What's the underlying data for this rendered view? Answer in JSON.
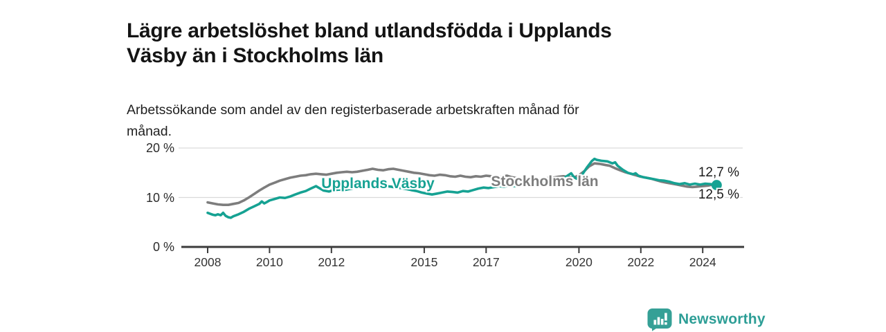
{
  "header": {
    "title_lines": [
      "Lägre arbetslöshet bland utlandsfödda i Upplands",
      "Väsby än i Stockholms län"
    ],
    "subtitle_lines": [
      "Arbetssökande som andel av den registerbaserade arbetskraften månad för",
      "månad."
    ]
  },
  "branding": {
    "logo_text": "Newsworthy",
    "logo_icon": "speech-bubble-bar-chart",
    "brand_color": "#2d9e96"
  },
  "colors": {
    "teal_series": "#16a293",
    "gray_series": "#7d7d7d",
    "axis": "#3b3b3b",
    "grid": "#d9d9d9",
    "text_dark": "#1a1a1a"
  },
  "chart_data": {
    "type": "line",
    "title": "Lägre arbetslöshet bland utlandsfödda i Upplands Väsby än i Stockholms län",
    "subtitle": "Arbetssökande som andel av den registerbaserade arbetskraften månad för månad.",
    "xlabel": "",
    "ylabel": "",
    "x_range": [
      2007.9,
      2025.35
    ],
    "y_range": [
      0,
      20
    ],
    "grid": "horizontal",
    "legend_position": "inline-labels",
    "x_ticks": [
      {
        "year": 2008,
        "label": "2008"
      },
      {
        "year": 2010,
        "label": "2010"
      },
      {
        "year": 2012,
        "label": "2012"
      },
      {
        "year": 2015,
        "label": "2015"
      },
      {
        "year": 2017,
        "label": "2017"
      },
      {
        "year": 2020,
        "label": "2020"
      },
      {
        "year": 2022,
        "label": "2022"
      },
      {
        "year": 2024,
        "label": "2024"
      }
    ],
    "y_ticks": [
      {
        "value": 0,
        "label": "0 %"
      },
      {
        "value": 10,
        "label": "10 %"
      },
      {
        "value": 20,
        "label": "20 %"
      }
    ],
    "series": [
      {
        "name": "Stockholms län",
        "color": "#7d7d7d",
        "end_label": "12,7 %",
        "end_value": 12.7,
        "end_dot": false,
        "points": [
          [
            2008.0,
            9.0
          ],
          [
            2008.17,
            8.8
          ],
          [
            2008.33,
            8.6
          ],
          [
            2008.5,
            8.5
          ],
          [
            2008.67,
            8.5
          ],
          [
            2008.83,
            8.7
          ],
          [
            2009.0,
            8.9
          ],
          [
            2009.17,
            9.4
          ],
          [
            2009.33,
            10.0
          ],
          [
            2009.5,
            10.7
          ],
          [
            2009.67,
            11.4
          ],
          [
            2009.83,
            12.0
          ],
          [
            2010.0,
            12.6
          ],
          [
            2010.17,
            13.0
          ],
          [
            2010.33,
            13.4
          ],
          [
            2010.5,
            13.7
          ],
          [
            2010.67,
            14.0
          ],
          [
            2010.83,
            14.2
          ],
          [
            2011.0,
            14.4
          ],
          [
            2011.17,
            14.5
          ],
          [
            2011.33,
            14.7
          ],
          [
            2011.5,
            14.8
          ],
          [
            2011.67,
            14.7
          ],
          [
            2011.83,
            14.6
          ],
          [
            2012.0,
            14.8
          ],
          [
            2012.17,
            15.0
          ],
          [
            2012.33,
            15.1
          ],
          [
            2012.5,
            15.2
          ],
          [
            2012.67,
            15.1
          ],
          [
            2012.83,
            15.2
          ],
          [
            2013.0,
            15.4
          ],
          [
            2013.17,
            15.6
          ],
          [
            2013.33,
            15.8
          ],
          [
            2013.5,
            15.6
          ],
          [
            2013.67,
            15.5
          ],
          [
            2013.83,
            15.7
          ],
          [
            2014.0,
            15.8
          ],
          [
            2014.17,
            15.6
          ],
          [
            2014.33,
            15.4
          ],
          [
            2014.5,
            15.2
          ],
          [
            2014.67,
            15.0
          ],
          [
            2014.83,
            14.9
          ],
          [
            2015.0,
            14.7
          ],
          [
            2015.17,
            14.5
          ],
          [
            2015.33,
            14.4
          ],
          [
            2015.5,
            14.6
          ],
          [
            2015.67,
            14.5
          ],
          [
            2015.83,
            14.3
          ],
          [
            2016.0,
            14.2
          ],
          [
            2016.17,
            14.4
          ],
          [
            2016.33,
            14.2
          ],
          [
            2016.5,
            14.1
          ],
          [
            2016.67,
            14.3
          ],
          [
            2016.83,
            14.2
          ],
          [
            2017.0,
            14.4
          ],
          [
            2017.17,
            14.3
          ],
          [
            2017.33,
            14.1
          ],
          [
            2017.5,
            14.2
          ],
          [
            2017.67,
            14.4
          ],
          [
            2017.83,
            14.1
          ],
          [
            2018.0,
            13.9
          ],
          [
            2018.17,
            13.8
          ],
          [
            2018.33,
            13.7
          ],
          [
            2018.5,
            13.8
          ],
          [
            2018.67,
            13.7
          ],
          [
            2018.83,
            13.8
          ],
          [
            2019.0,
            13.9
          ],
          [
            2019.17,
            14.0
          ],
          [
            2019.33,
            14.2
          ],
          [
            2019.5,
            14.3
          ],
          [
            2019.67,
            14.1
          ],
          [
            2019.83,
            14.0
          ],
          [
            2020.0,
            14.5
          ],
          [
            2020.17,
            15.3
          ],
          [
            2020.33,
            16.3
          ],
          [
            2020.5,
            16.9
          ],
          [
            2020.67,
            16.8
          ],
          [
            2020.83,
            16.6
          ],
          [
            2021.0,
            16.4
          ],
          [
            2021.17,
            15.9
          ],
          [
            2021.33,
            15.5
          ],
          [
            2021.5,
            15.1
          ],
          [
            2021.67,
            14.8
          ],
          [
            2021.83,
            14.5
          ],
          [
            2022.0,
            14.2
          ],
          [
            2022.17,
            14.0
          ],
          [
            2022.33,
            13.8
          ],
          [
            2022.5,
            13.5
          ],
          [
            2022.67,
            13.2
          ],
          [
            2022.83,
            13.0
          ],
          [
            2023.0,
            12.8
          ],
          [
            2023.17,
            12.6
          ],
          [
            2023.33,
            12.4
          ],
          [
            2023.5,
            12.2
          ],
          [
            2023.67,
            12.1
          ],
          [
            2023.83,
            12.2
          ],
          [
            2024.0,
            12.3
          ],
          [
            2024.17,
            12.4
          ],
          [
            2024.33,
            12.6
          ],
          [
            2024.45,
            12.7
          ]
        ]
      },
      {
        "name": "Upplands Väsby",
        "color": "#16a293",
        "end_label": "12,5 %",
        "end_value": 12.5,
        "end_dot": true,
        "points": [
          [
            2008.0,
            6.9
          ],
          [
            2008.08,
            6.7
          ],
          [
            2008.17,
            6.5
          ],
          [
            2008.25,
            6.4
          ],
          [
            2008.33,
            6.6
          ],
          [
            2008.42,
            6.4
          ],
          [
            2008.5,
            6.9
          ],
          [
            2008.58,
            6.3
          ],
          [
            2008.67,
            6.0
          ],
          [
            2008.75,
            5.9
          ],
          [
            2008.83,
            6.2
          ],
          [
            2008.92,
            6.4
          ],
          [
            2009.0,
            6.6
          ],
          [
            2009.17,
            7.1
          ],
          [
            2009.33,
            7.7
          ],
          [
            2009.5,
            8.2
          ],
          [
            2009.67,
            8.7
          ],
          [
            2009.75,
            9.2
          ],
          [
            2009.83,
            8.8
          ],
          [
            2009.92,
            9.1
          ],
          [
            2010.0,
            9.4
          ],
          [
            2010.17,
            9.7
          ],
          [
            2010.33,
            10.0
          ],
          [
            2010.5,
            9.9
          ],
          [
            2010.67,
            10.2
          ],
          [
            2010.83,
            10.6
          ],
          [
            2011.0,
            11.0
          ],
          [
            2011.17,
            11.3
          ],
          [
            2011.33,
            11.8
          ],
          [
            2011.5,
            12.3
          ],
          [
            2011.58,
            12.0
          ],
          [
            2011.75,
            11.4
          ],
          [
            2011.92,
            11.2
          ],
          [
            2012.08,
            11.5
          ],
          [
            2012.25,
            11.6
          ],
          [
            2012.42,
            11.5
          ],
          [
            2012.58,
            11.7
          ],
          [
            2012.75,
            11.9
          ],
          [
            2012.92,
            12.1
          ],
          [
            2013.08,
            12.3
          ],
          [
            2013.25,
            12.5
          ],
          [
            2013.42,
            12.4
          ],
          [
            2013.58,
            12.5
          ],
          [
            2013.75,
            12.3
          ],
          [
            2013.92,
            12.2
          ],
          [
            2014.08,
            12.0
          ],
          [
            2014.25,
            11.9
          ],
          [
            2014.42,
            11.7
          ],
          [
            2014.58,
            11.5
          ],
          [
            2014.75,
            11.3
          ],
          [
            2014.92,
            11.0
          ],
          [
            2015.08,
            10.8
          ],
          [
            2015.25,
            10.6
          ],
          [
            2015.42,
            10.8
          ],
          [
            2015.58,
            11.0
          ],
          [
            2015.75,
            11.2
          ],
          [
            2015.92,
            11.1
          ],
          [
            2016.08,
            11.0
          ],
          [
            2016.25,
            11.3
          ],
          [
            2016.42,
            11.2
          ],
          [
            2016.58,
            11.5
          ],
          [
            2016.75,
            11.8
          ],
          [
            2016.92,
            12.0
          ],
          [
            2017.08,
            11.9
          ],
          [
            2017.25,
            12.1
          ],
          [
            2017.42,
            12.3
          ],
          [
            2017.58,
            12.2
          ],
          [
            2017.75,
            12.4
          ],
          [
            2017.92,
            12.3
          ],
          [
            2018.08,
            12.4
          ],
          [
            2018.25,
            12.6
          ],
          [
            2018.42,
            12.5
          ],
          [
            2018.58,
            12.7
          ],
          [
            2018.75,
            12.8
          ],
          [
            2018.92,
            12.9
          ],
          [
            2019.08,
            13.0
          ],
          [
            2019.25,
            13.2
          ],
          [
            2019.42,
            13.6
          ],
          [
            2019.58,
            14.2
          ],
          [
            2019.75,
            14.9
          ],
          [
            2019.83,
            14.2
          ],
          [
            2019.92,
            13.8
          ],
          [
            2020.08,
            14.4
          ],
          [
            2020.25,
            16.0
          ],
          [
            2020.42,
            17.4
          ],
          [
            2020.5,
            17.8
          ],
          [
            2020.58,
            17.6
          ],
          [
            2020.75,
            17.4
          ],
          [
            2020.92,
            17.3
          ],
          [
            2021.08,
            16.9
          ],
          [
            2021.17,
            17.1
          ],
          [
            2021.25,
            16.4
          ],
          [
            2021.42,
            15.6
          ],
          [
            2021.58,
            15.0
          ],
          [
            2021.75,
            14.7
          ],
          [
            2021.83,
            14.9
          ],
          [
            2021.92,
            14.4
          ],
          [
            2022.08,
            14.1
          ],
          [
            2022.25,
            13.9
          ],
          [
            2022.42,
            13.7
          ],
          [
            2022.58,
            13.5
          ],
          [
            2022.75,
            13.4
          ],
          [
            2022.92,
            13.2
          ],
          [
            2023.08,
            12.9
          ],
          [
            2023.25,
            12.7
          ],
          [
            2023.42,
            12.9
          ],
          [
            2023.58,
            12.6
          ],
          [
            2023.75,
            12.8
          ],
          [
            2023.92,
            12.6
          ],
          [
            2024.08,
            12.8
          ],
          [
            2024.25,
            12.7
          ],
          [
            2024.45,
            12.5
          ]
        ]
      }
    ]
  }
}
